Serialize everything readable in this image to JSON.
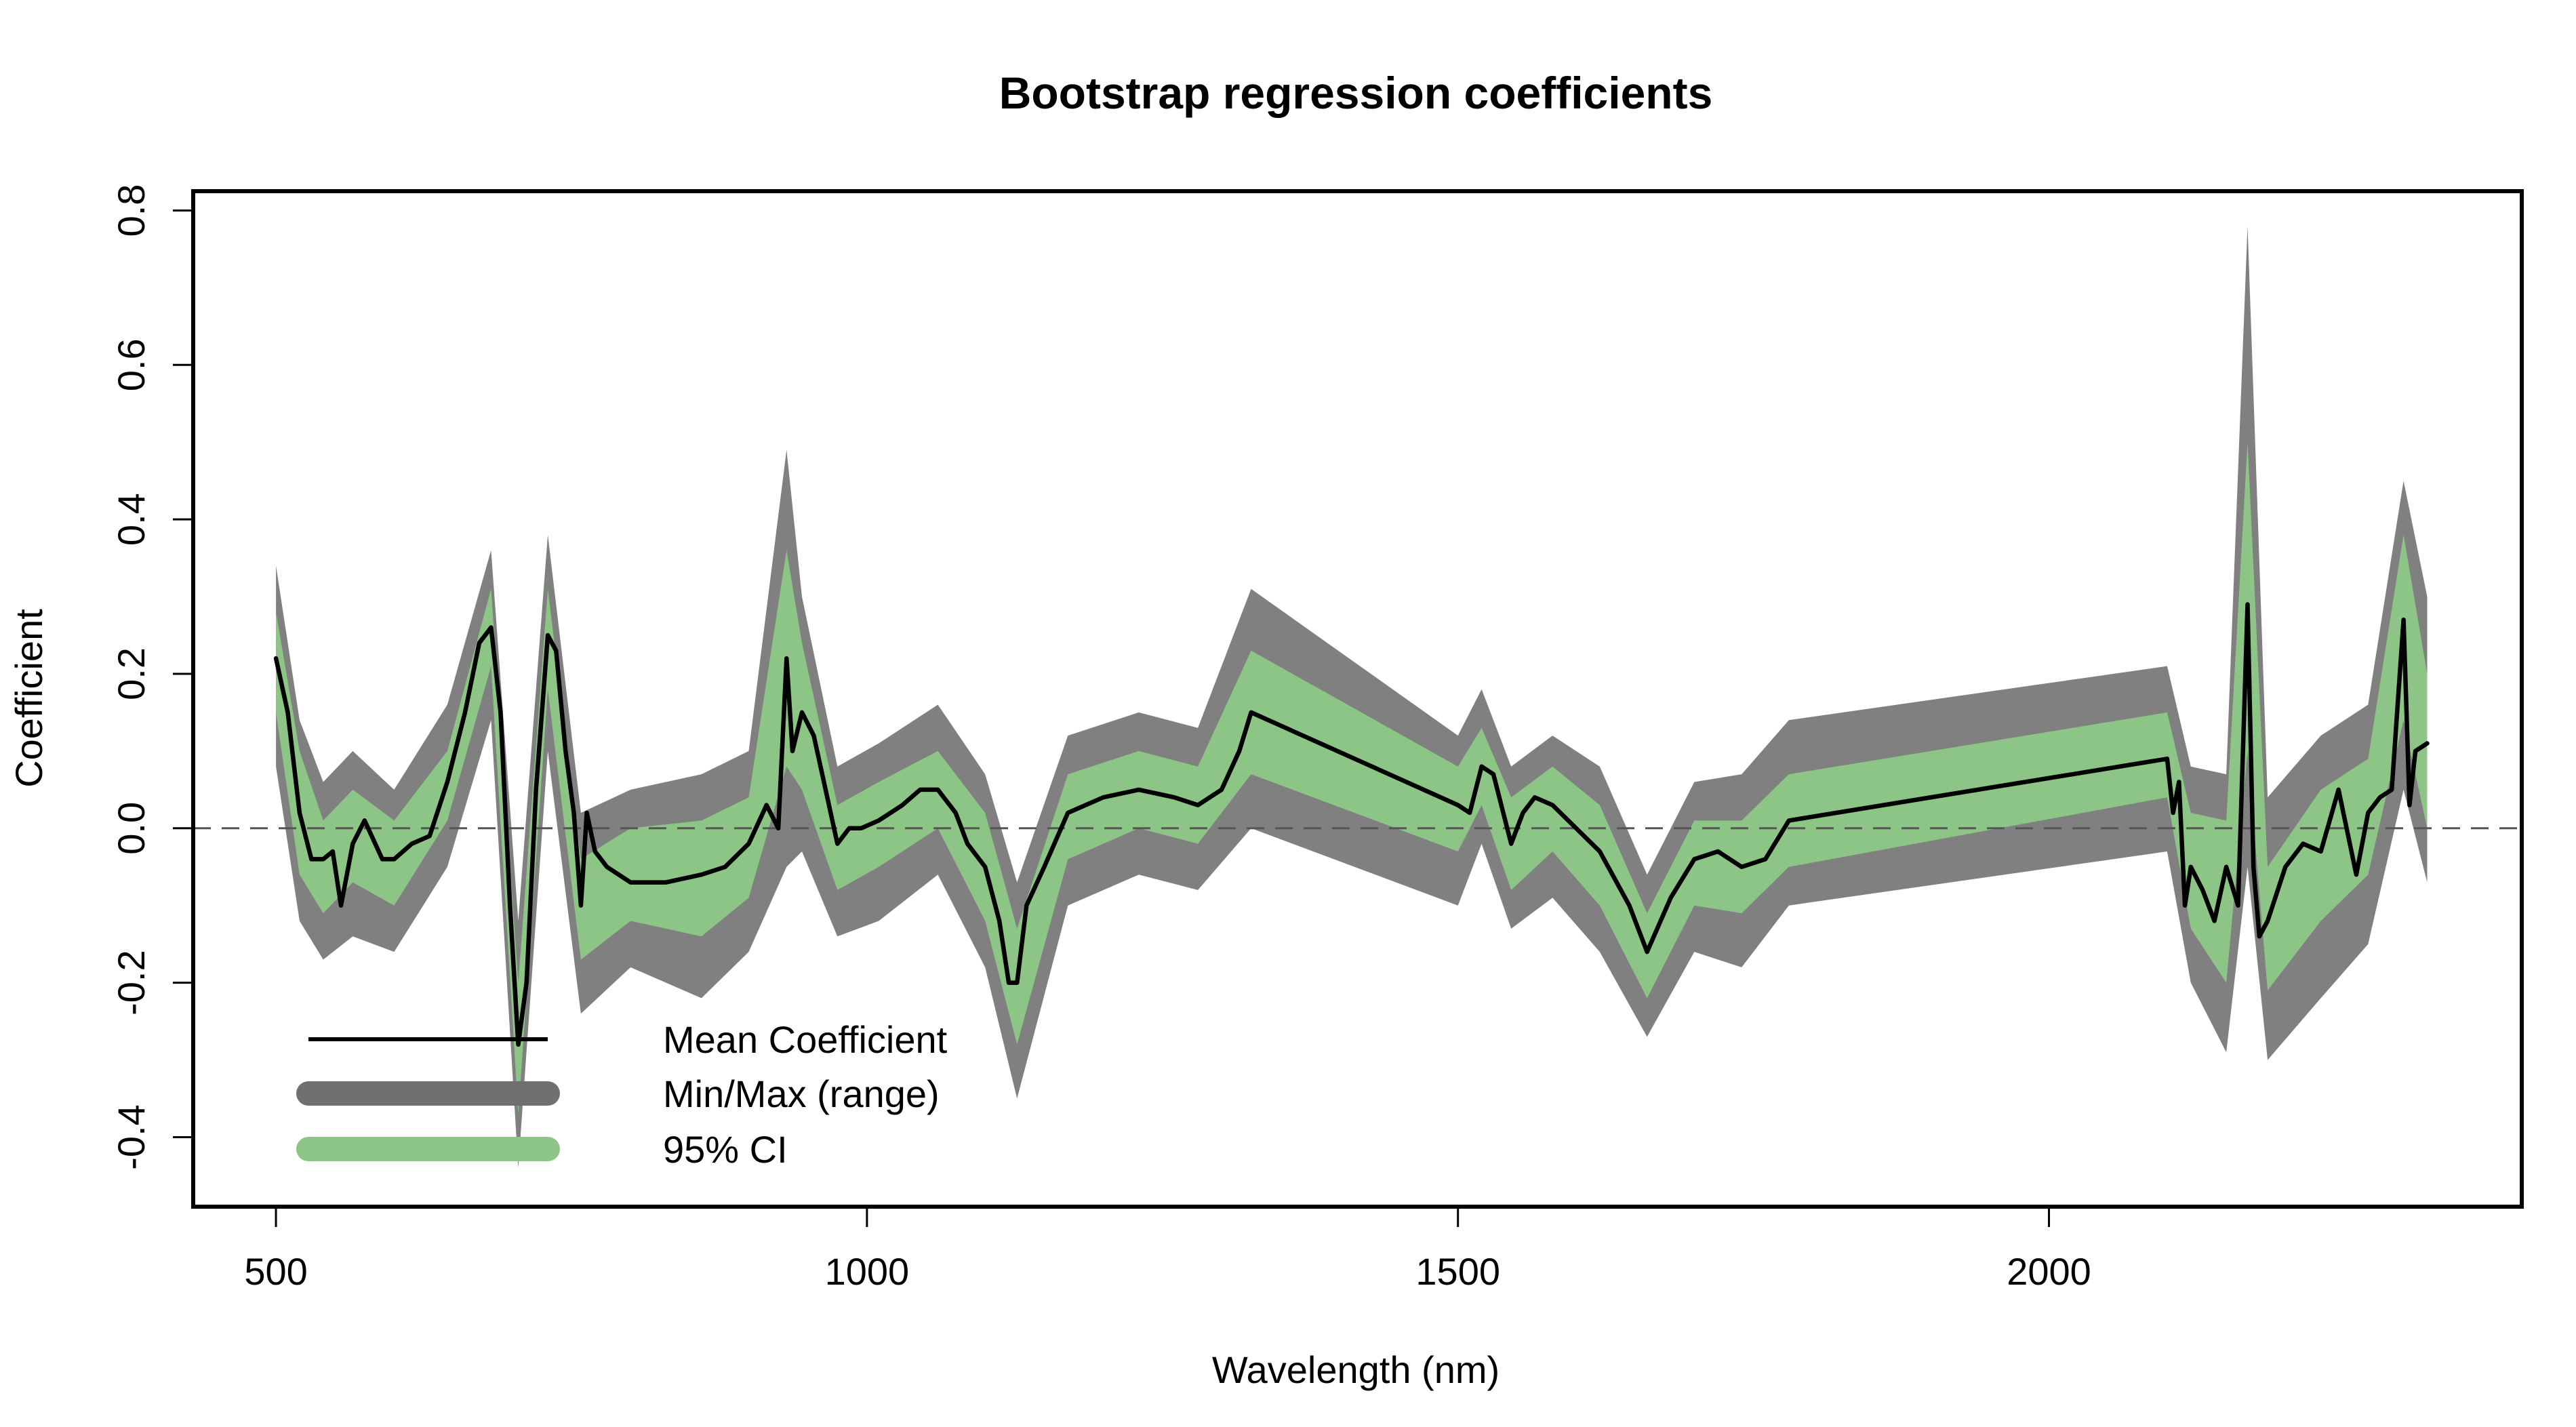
{
  "chart_data": {
    "type": "line",
    "title": "Bootstrap regression coefficients",
    "xlabel": "Wavelength (nm)",
    "ylabel": "Coefficient",
    "xlim": [
      430,
      2400
    ],
    "ylim": [
      -0.49,
      0.825
    ],
    "x_ticks": [
      500,
      1000,
      1500,
      2000
    ],
    "x_tick_labels": [
      "500",
      "1000",
      "1500",
      "2000"
    ],
    "y_ticks": [
      -0.4,
      -0.2,
      0.0,
      0.2,
      0.4,
      0.6,
      0.8
    ],
    "y_tick_labels": [
      "-0.4",
      "-0.2",
      "0.0",
      "0.2",
      "0.4",
      "0.6",
      "0.8"
    ],
    "reference_line": {
      "y": 0,
      "style": "dashed",
      "color": "#555555"
    },
    "grid": false,
    "legend": {
      "placement": "bottom-left",
      "entries": [
        {
          "label": "Mean Coefficient",
          "color": "#000000",
          "style": "line"
        },
        {
          "label": "Min/Max (range)",
          "color": "#707070",
          "style": "thick"
        },
        {
          "label": "95% CI",
          "color": "#8cc585",
          "style": "thick"
        }
      ]
    },
    "colors": {
      "mean": "#000000",
      "range": "#808080",
      "ci": "#8cc585",
      "range_legend": "#707070"
    },
    "series": [
      {
        "name": "Mean Coefficient",
        "x": [
          500,
          510,
          520,
          530,
          540,
          548,
          555,
          565,
          575,
          590,
          600,
          615,
          630,
          645,
          660,
          672,
          682,
          690,
          698,
          705,
          712,
          720,
          730,
          737,
          745,
          752,
          758,
          763,
          770,
          780,
          800,
          830,
          860,
          880,
          900,
          915,
          925,
          932,
          937,
          945,
          955,
          965,
          975,
          985,
          995,
          1010,
          1030,
          1045,
          1060,
          1075,
          1085,
          1100,
          1112,
          1120,
          1127,
          1135,
          1150,
          1170,
          1200,
          1230,
          1260,
          1280,
          1300,
          1315,
          1325,
          1500,
          1510,
          1520,
          1530,
          1545,
          1555,
          1565,
          1580,
          1600,
          1620,
          1645,
          1660,
          1680,
          1700,
          1720,
          1740,
          1760,
          1780,
          2100,
          2105,
          2110,
          2115,
          2120,
          2130,
          2140,
          2150,
          2160,
          2168,
          2173,
          2178,
          2185,
          2200,
          2215,
          2230,
          2245,
          2260,
          2270,
          2280,
          2290,
          2300,
          2305,
          2310,
          2320
        ],
        "values": [
          0.22,
          0.15,
          0.02,
          -0.04,
          -0.04,
          -0.03,
          -0.1,
          -0.02,
          0.01,
          -0.04,
          -0.04,
          -0.02,
          -0.01,
          0.06,
          0.15,
          0.24,
          0.26,
          0.15,
          -0.1,
          -0.28,
          -0.2,
          0.05,
          0.25,
          0.23,
          0.1,
          0.02,
          -0.1,
          0.02,
          -0.03,
          -0.05,
          -0.07,
          -0.07,
          -0.06,
          -0.05,
          -0.02,
          0.03,
          0.0,
          0.22,
          0.1,
          0.15,
          0.12,
          0.05,
          -0.02,
          0.0,
          0.0,
          0.01,
          0.03,
          0.05,
          0.05,
          0.02,
          -0.02,
          -0.05,
          -0.12,
          -0.2,
          -0.2,
          -0.1,
          -0.05,
          0.02,
          0.04,
          0.05,
          0.04,
          0.03,
          0.05,
          0.1,
          0.15,
          0.03,
          0.02,
          0.08,
          0.07,
          -0.02,
          0.02,
          0.04,
          0.03,
          0.0,
          -0.03,
          -0.1,
          -0.16,
          -0.09,
          -0.04,
          -0.03,
          -0.05,
          -0.04,
          0.01,
          0.09,
          0.02,
          0.06,
          -0.1,
          -0.05,
          -0.08,
          -0.12,
          -0.05,
          -0.1,
          0.29,
          -0.05,
          -0.14,
          -0.12,
          -0.05,
          -0.02,
          -0.03,
          0.05,
          -0.06,
          0.02,
          0.04,
          0.05,
          0.27,
          0.03,
          0.1,
          0.11
        ]
      },
      {
        "name": "95% CI",
        "x": [
          500,
          520,
          540,
          565,
          600,
          645,
          682,
          705,
          730,
          758,
          800,
          860,
          900,
          932,
          945,
          975,
          1010,
          1060,
          1100,
          1127,
          1170,
          1230,
          1280,
          1325,
          1500,
          1520,
          1545,
          1580,
          1620,
          1660,
          1700,
          1740,
          1780,
          2100,
          2120,
          2150,
          2168,
          2185,
          2230,
          2270,
          2300,
          2320
        ],
        "upper": [
          0.28,
          0.1,
          0.01,
          0.05,
          0.01,
          0.1,
          0.31,
          -0.2,
          0.31,
          -0.04,
          0.0,
          0.01,
          0.04,
          0.36,
          0.24,
          0.03,
          0.06,
          0.1,
          0.02,
          -0.13,
          0.07,
          0.1,
          0.08,
          0.23,
          0.08,
          0.13,
          0.04,
          0.08,
          0.03,
          -0.11,
          0.01,
          0.01,
          0.07,
          0.15,
          0.02,
          0.01,
          0.5,
          -0.05,
          0.05,
          0.09,
          0.38,
          0.2
        ],
        "lower": [
          0.15,
          -0.06,
          -0.11,
          -0.07,
          -0.1,
          0.01,
          0.21,
          -0.37,
          0.18,
          -0.17,
          -0.12,
          -0.14,
          -0.09,
          0.08,
          0.05,
          -0.08,
          -0.05,
          0.0,
          -0.12,
          -0.28,
          -0.04,
          0.0,
          -0.02,
          0.07,
          -0.03,
          0.03,
          -0.08,
          -0.03,
          -0.1,
          -0.22,
          -0.1,
          -0.11,
          -0.05,
          0.04,
          -0.13,
          -0.2,
          0.1,
          -0.21,
          -0.12,
          -0.06,
          0.14,
          0.0
        ]
      },
      {
        "name": "Min/Max (range)",
        "x": [
          500,
          520,
          540,
          565,
          600,
          645,
          682,
          705,
          730,
          758,
          800,
          860,
          900,
          932,
          945,
          975,
          1010,
          1060,
          1100,
          1127,
          1170,
          1230,
          1280,
          1325,
          1500,
          1520,
          1545,
          1580,
          1620,
          1660,
          1700,
          1740,
          1780,
          2100,
          2120,
          2150,
          2168,
          2185,
          2230,
          2270,
          2300,
          2320
        ],
        "upper": [
          0.34,
          0.14,
          0.06,
          0.1,
          0.05,
          0.16,
          0.36,
          -0.12,
          0.38,
          0.02,
          0.05,
          0.07,
          0.1,
          0.49,
          0.3,
          0.08,
          0.11,
          0.16,
          0.07,
          -0.07,
          0.12,
          0.15,
          0.13,
          0.31,
          0.12,
          0.18,
          0.08,
          0.12,
          0.08,
          -0.06,
          0.06,
          0.07,
          0.14,
          0.21,
          0.08,
          0.07,
          0.78,
          0.04,
          0.12,
          0.16,
          0.45,
          0.3
        ],
        "lower": [
          0.08,
          -0.12,
          -0.17,
          -0.14,
          -0.16,
          -0.05,
          0.14,
          -0.44,
          0.1,
          -0.24,
          -0.18,
          -0.22,
          -0.16,
          -0.05,
          -0.03,
          -0.14,
          -0.12,
          -0.06,
          -0.18,
          -0.35,
          -0.1,
          -0.06,
          -0.08,
          0.0,
          -0.1,
          -0.02,
          -0.13,
          -0.09,
          -0.16,
          -0.27,
          -0.16,
          -0.18,
          -0.1,
          -0.03,
          -0.2,
          -0.29,
          -0.05,
          -0.3,
          -0.22,
          -0.15,
          0.05,
          -0.07
        ]
      }
    ]
  }
}
